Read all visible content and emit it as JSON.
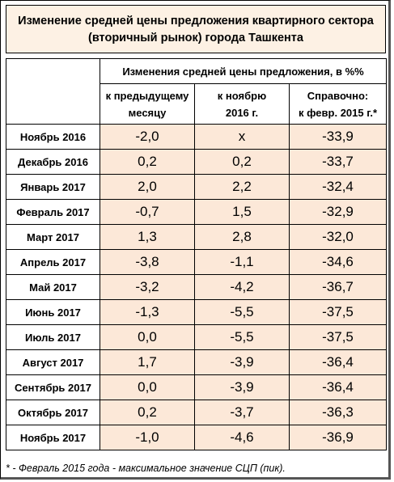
{
  "title_line1": "Изменение средней цены предложения квартирного сектора",
  "title_line2": "(вторичный рынок) города Ташкента",
  "group_header": "Изменения средней цены предложения, в %%",
  "columns": {
    "prev_line1": "к предыдущему",
    "prev_line2": "месяцу",
    "nov_line1": "к ноябрю",
    "nov_line2": "2016 г.",
    "ref_line1": "Справочно:",
    "ref_line2": "к февр. 2015 г.*"
  },
  "rows": [
    {
      "month": "Ноябрь 2016",
      "prev": "-2,0",
      "nov": "х",
      "ref": "-33,9"
    },
    {
      "month": "Декабрь 2016",
      "prev": "0,2",
      "nov": "0,2",
      "ref": "-33,7"
    },
    {
      "month": "Январь 2017",
      "prev": "2,0",
      "nov": "2,2",
      "ref": "-32,4"
    },
    {
      "month": "Февраль 2017",
      "prev": "-0,7",
      "nov": "1,5",
      "ref": "-32,9"
    },
    {
      "month": "Март 2017",
      "prev": "1,3",
      "nov": "2,8",
      "ref": "-32,0"
    },
    {
      "month": "Апрель 2017",
      "prev": "-3,8",
      "nov": "-1,1",
      "ref": "-34,6"
    },
    {
      "month": "Май 2017",
      "prev": "-3,2",
      "nov": "-4,2",
      "ref": "-36,7"
    },
    {
      "month": "Июнь 2017",
      "prev": "-1,3",
      "nov": "-5,5",
      "ref": "-37,5"
    },
    {
      "month": "Июль 2017",
      "prev": "0,0",
      "nov": "-5,5",
      "ref": "-37,5"
    },
    {
      "month": "Август 2017",
      "prev": "1,7",
      "nov": "-3,9",
      "ref": "-36,4"
    },
    {
      "month": "Сентябрь 2017",
      "prev": "0,0",
      "nov": "-3,9",
      "ref": "-36,4"
    },
    {
      "month": "Октябрь 2017",
      "prev": "0,2",
      "nov": "-3,7",
      "ref": "-36,3"
    },
    {
      "month": "Ноябрь 2017",
      "prev": "-1,0",
      "nov": "-4,6",
      "ref": "-36,9"
    }
  ],
  "footnote": "* - Февраль 2015 года - максимальное значение СЦП (пик).",
  "colors": {
    "title_bg": "#fdf1e4",
    "value_bg": "#fce8d8",
    "border": "#000000"
  }
}
